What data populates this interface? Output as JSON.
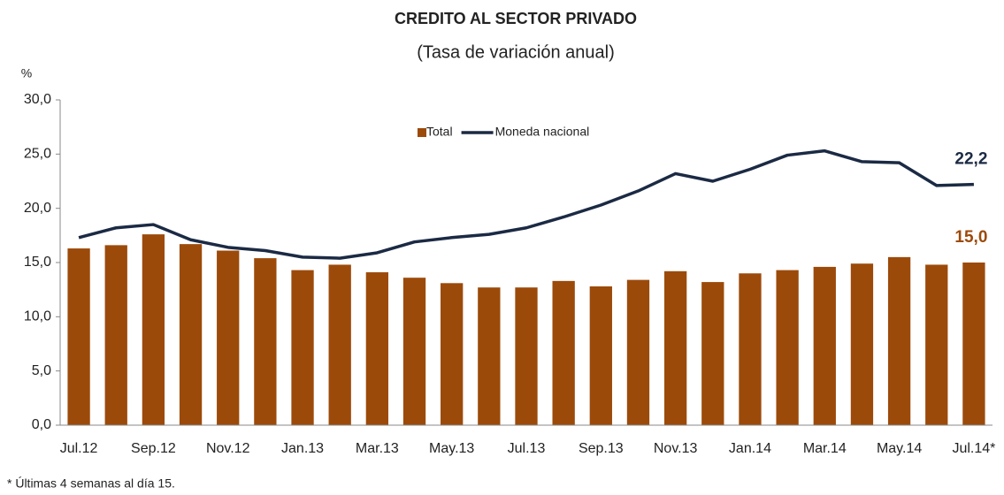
{
  "chart_data": {
    "type": "bar_line",
    "title": "CREDITO AL SECTOR PRIVADO",
    "subtitle": "(Tasa de variación anual)",
    "y_label": "%",
    "footnote": "* Últimas 4 semanas al día 15.",
    "categories": [
      "Jul.12",
      null,
      "Sep.12",
      null,
      "Nov.12",
      null,
      "Jan.13",
      null,
      "Mar.13",
      null,
      "May.13",
      null,
      "Jul.13",
      null,
      "Sep.13",
      null,
      "Nov.13",
      null,
      "Jan.14",
      null,
      "Mar.14",
      null,
      "May.14",
      null,
      "Jul.14*"
    ],
    "series": [
      {
        "name": "Total",
        "kind": "bar",
        "color": "#9c4a0a",
        "values": [
          16.3,
          16.6,
          17.6,
          16.7,
          16.1,
          15.4,
          14.3,
          14.8,
          14.1,
          13.6,
          13.1,
          12.7,
          12.7,
          13.3,
          12.8,
          13.4,
          14.2,
          13.2,
          14.0,
          14.3,
          14.6,
          14.9,
          15.5,
          14.8,
          15.0
        ],
        "value_labels": [
          null,
          null,
          null,
          null,
          null,
          null,
          null,
          null,
          null,
          null,
          null,
          null,
          null,
          null,
          null,
          null,
          null,
          null,
          null,
          null,
          null,
          null,
          null,
          null,
          "15,0"
        ]
      },
      {
        "name": "Moneda nacional",
        "kind": "line",
        "color": "#1b2a44",
        "values": [
          17.3,
          18.2,
          18.5,
          17.1,
          16.4,
          16.1,
          15.5,
          15.4,
          15.9,
          16.9,
          17.3,
          17.6,
          18.2,
          19.2,
          20.3,
          21.6,
          23.2,
          22.5,
          23.6,
          24.9,
          25.3,
          24.3,
          24.2,
          22.1,
          22.2
        ],
        "value_labels": [
          null,
          null,
          null,
          null,
          null,
          null,
          null,
          null,
          null,
          null,
          null,
          null,
          null,
          null,
          null,
          null,
          null,
          null,
          null,
          null,
          null,
          null,
          null,
          null,
          "22,2"
        ]
      }
    ],
    "ylim": [
      0,
      30
    ],
    "yticks": [
      {
        "value": 0,
        "label": "0,0"
      },
      {
        "value": 5,
        "label": "5,0"
      },
      {
        "value": 10,
        "label": "10,0"
      },
      {
        "value": 15,
        "label": "15,0"
      },
      {
        "value": 20,
        "label": "20,0"
      },
      {
        "value": 25,
        "label": "25,0"
      },
      {
        "value": 30,
        "label": "30,0"
      }
    ],
    "grid": false,
    "legend": "top"
  }
}
